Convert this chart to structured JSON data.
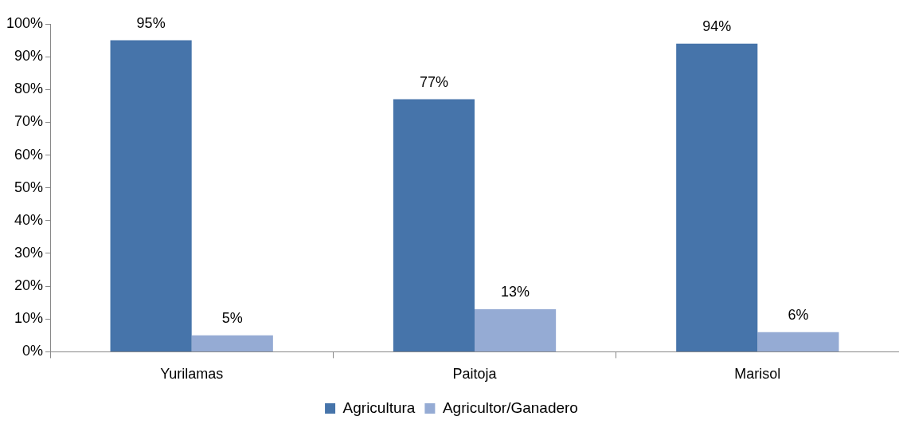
{
  "chart_data": {
    "type": "bar",
    "categories": [
      "Yurilamas",
      "Paitoja",
      "Marisol"
    ],
    "series": [
      {
        "name": "Agricultura",
        "color": "#4674aa",
        "values": [
          95,
          77,
          94
        ],
        "value_labels": [
          "95%",
          "77%",
          "94%"
        ]
      },
      {
        "name": "Agricultor/Ganadero",
        "color": "#95abd4",
        "values": [
          5,
          13,
          6
        ],
        "value_labels": [
          "5%",
          "13%",
          "6%"
        ]
      }
    ],
    "ylim": [
      0,
      100
    ],
    "yticks": [
      {
        "value": 0,
        "label": "0%"
      },
      {
        "value": 10,
        "label": "10%"
      },
      {
        "value": 20,
        "label": "20%"
      },
      {
        "value": 30,
        "label": "30%"
      },
      {
        "value": 40,
        "label": "40%"
      },
      {
        "value": 50,
        "label": "50%"
      },
      {
        "value": 60,
        "label": "60%"
      },
      {
        "value": 70,
        "label": "70%"
      },
      {
        "value": 80,
        "label": "80%"
      },
      {
        "value": 90,
        "label": "90%"
      },
      {
        "value": 100,
        "label": "100%"
      }
    ],
    "grid": false,
    "legend": "bottom"
  }
}
